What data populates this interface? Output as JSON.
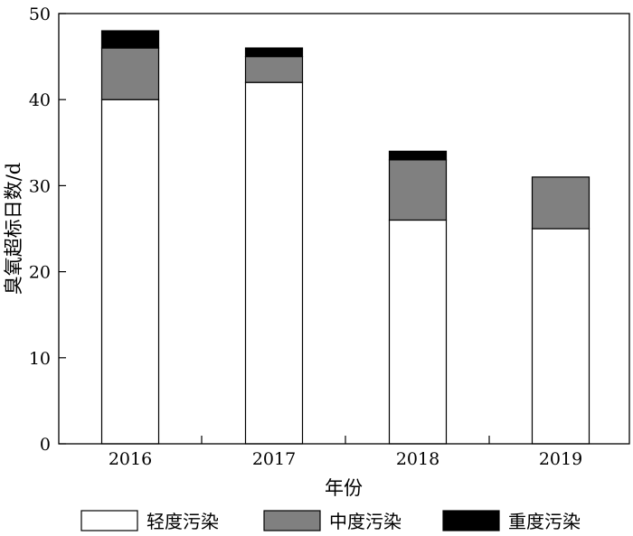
{
  "chart_data": {
    "type": "bar",
    "stacked": true,
    "categories": [
      "2016",
      "2017",
      "2018",
      "2019"
    ],
    "series": [
      {
        "name": "轻度污染",
        "values": [
          40,
          42,
          26,
          25
        ],
        "color": "#ffffff"
      },
      {
        "name": "中度污染",
        "values": [
          6,
          3,
          7,
          6
        ],
        "color": "#808080"
      },
      {
        "name": "重度污染",
        "values": [
          2,
          1,
          1,
          0
        ],
        "color": "#000000"
      }
    ],
    "xlabel": "年份",
    "ylabel": "臭氧超标日数/d",
    "ylim": [
      0,
      50
    ],
    "yticks": [
      0,
      10,
      20,
      30,
      40,
      50
    ],
    "grid": false,
    "legend_position": "bottom"
  }
}
